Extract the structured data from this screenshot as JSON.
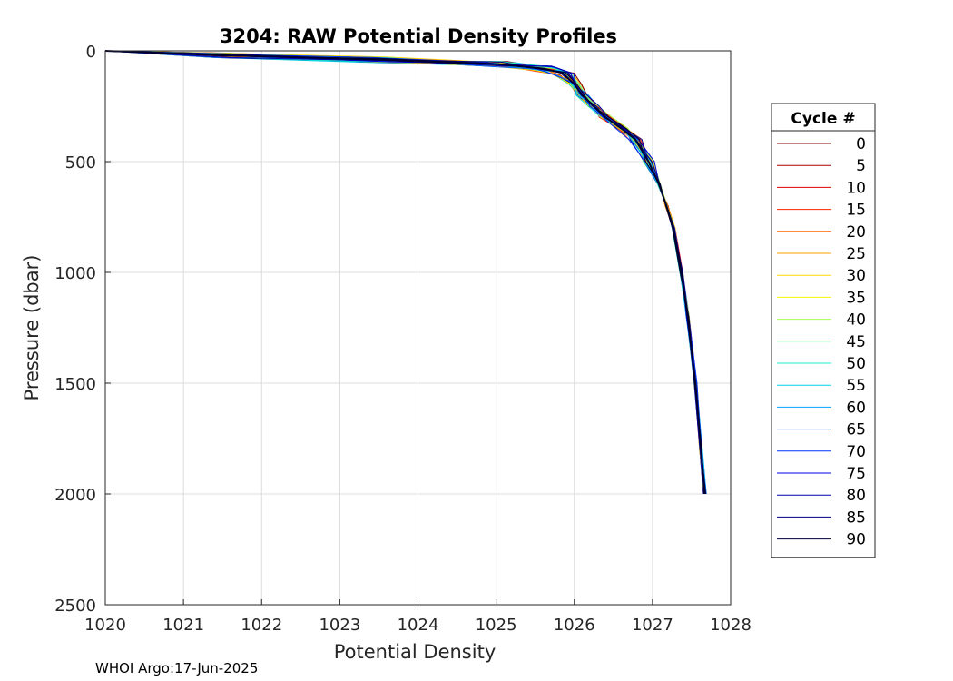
{
  "chart_data": {
    "type": "line",
    "title": "3204: RAW Potential Density Profiles",
    "xlabel": "Potential Density",
    "ylabel": "Pressure (dbar)",
    "xlim": [
      1020,
      1028
    ],
    "ylim": [
      0,
      2500
    ],
    "y_reversed": true,
    "grid": true,
    "xticks": [
      "1020",
      "1021",
      "1022",
      "1023",
      "1024",
      "1025",
      "1026",
      "1027",
      "1028"
    ],
    "yticks": [
      "0",
      "500",
      "1000",
      "1500",
      "2000",
      "2500"
    ],
    "legend": {
      "title": "Cycle #",
      "placement": "right",
      "entries": [
        "0",
        "5",
        "10",
        "15",
        "20",
        "25",
        "30",
        "35",
        "40",
        "45",
        "50",
        "55",
        "60",
        "65",
        "70",
        "75",
        "80",
        "85",
        "90"
      ],
      "colors": [
        "#7f0000",
        "#b00000",
        "#e00000",
        "#ff2000",
        "#ff6000",
        "#ffa000",
        "#ffd800",
        "#f4f400",
        "#a8ff50",
        "#50ff9c",
        "#18ecc8",
        "#00d0e8",
        "#00a0ff",
        "#0068ff",
        "#0030ff",
        "#0000e0",
        "#0000b0",
        "#000080",
        "#000030"
      ]
    },
    "profile_shape": {
      "pressure": [
        0,
        20,
        40,
        60,
        80,
        100,
        150,
        200,
        250,
        300,
        350,
        400,
        500,
        600,
        700,
        800,
        1000,
        1200,
        1500,
        1800,
        2000
      ],
      "density": [
        1020.0,
        1021.5,
        1023.5,
        1025.0,
        1025.6,
        1025.85,
        1026.0,
        1026.1,
        1026.25,
        1026.4,
        1026.6,
        1026.78,
        1026.95,
        1027.08,
        1027.18,
        1027.27,
        1027.37,
        1027.45,
        1027.55,
        1027.62,
        1027.67
      ]
    }
  },
  "footer": {
    "text": "WHOI Argo:17-Jun-2025"
  }
}
